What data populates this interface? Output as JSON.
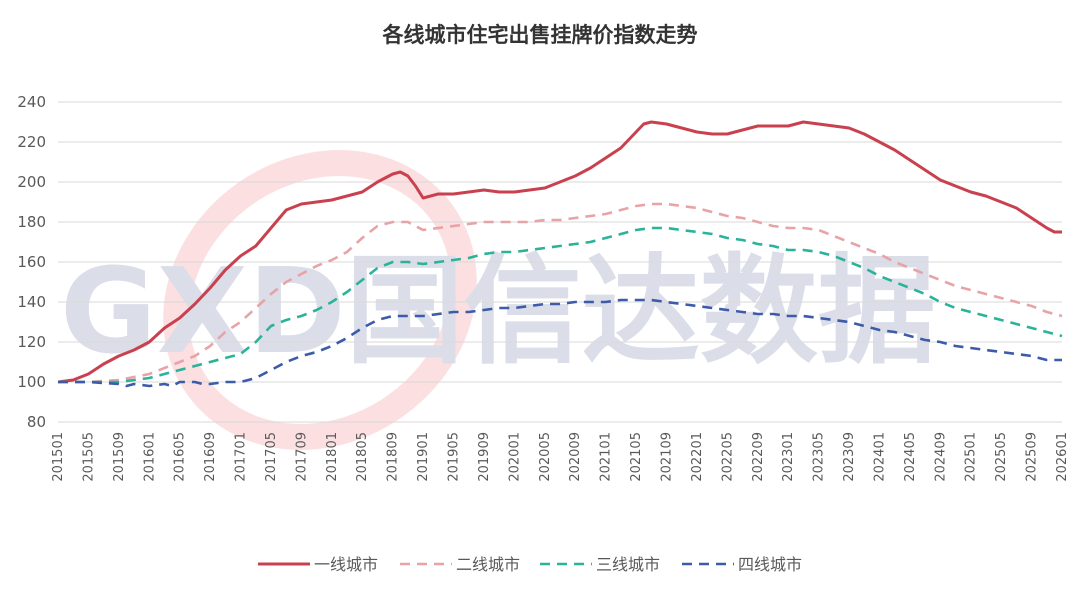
{
  "chart_data": {
    "type": "line",
    "title": "各线城市住宅出售挂牌价指数走势",
    "watermark": "GXD国信达数据",
    "ylim": [
      80,
      240
    ],
    "yticks": [
      80,
      100,
      120,
      140,
      160,
      180,
      200,
      220,
      240
    ],
    "xlim": [
      0,
      132
    ],
    "xticks": [
      {
        "i": 0,
        "label": "201501"
      },
      {
        "i": 4,
        "label": "201505"
      },
      {
        "i": 8,
        "label": "201509"
      },
      {
        "i": 12,
        "label": "201601"
      },
      {
        "i": 16,
        "label": "201605"
      },
      {
        "i": 20,
        "label": "201609"
      },
      {
        "i": 24,
        "label": "201701"
      },
      {
        "i": 28,
        "label": "201705"
      },
      {
        "i": 32,
        "label": "201709"
      },
      {
        "i": 36,
        "label": "201801"
      },
      {
        "i": 40,
        "label": "201805"
      },
      {
        "i": 44,
        "label": "201809"
      },
      {
        "i": 48,
        "label": "201901"
      },
      {
        "i": 52,
        "label": "201905"
      },
      {
        "i": 56,
        "label": "201909"
      },
      {
        "i": 60,
        "label": "202001"
      },
      {
        "i": 64,
        "label": "202005"
      },
      {
        "i": 68,
        "label": "202009"
      },
      {
        "i": 72,
        "label": "202101"
      },
      {
        "i": 76,
        "label": "202105"
      },
      {
        "i": 80,
        "label": "202109"
      },
      {
        "i": 84,
        "label": "202201"
      },
      {
        "i": 88,
        "label": "202205"
      },
      {
        "i": 92,
        "label": "202209"
      },
      {
        "i": 96,
        "label": "202301"
      },
      {
        "i": 100,
        "label": "202305"
      },
      {
        "i": 104,
        "label": "202309"
      },
      {
        "i": 108,
        "label": "202401"
      },
      {
        "i": 112,
        "label": "202405"
      },
      {
        "i": 116,
        "label": "202409"
      },
      {
        "i": 120,
        "label": "202501"
      },
      {
        "i": 124,
        "label": "202505"
      },
      {
        "i": 128,
        "label": "202509"
      },
      {
        "i": 132,
        "label": "202601"
      }
    ],
    "grid": true,
    "legend_position": "bottom",
    "series": [
      {
        "name": "一线城市",
        "color": "#c9414f",
        "dash": "solid",
        "points": [
          [
            0,
            100
          ],
          [
            2,
            101
          ],
          [
            4,
            104
          ],
          [
            6,
            109
          ],
          [
            8,
            113
          ],
          [
            10,
            116
          ],
          [
            12,
            120
          ],
          [
            14,
            127
          ],
          [
            16,
            132
          ],
          [
            18,
            139
          ],
          [
            20,
            147
          ],
          [
            22,
            156
          ],
          [
            24,
            163
          ],
          [
            26,
            168
          ],
          [
            28,
            177
          ],
          [
            30,
            186
          ],
          [
            32,
            189
          ],
          [
            34,
            190
          ],
          [
            36,
            191
          ],
          [
            38,
            193
          ],
          [
            40,
            195
          ],
          [
            42,
            200
          ],
          [
            44,
            204
          ],
          [
            45,
            205
          ],
          [
            46,
            203
          ],
          [
            47,
            198
          ],
          [
            48,
            192
          ],
          [
            50,
            194
          ],
          [
            52,
            194
          ],
          [
            54,
            195
          ],
          [
            56,
            196
          ],
          [
            58,
            195
          ],
          [
            60,
            195
          ],
          [
            62,
            196
          ],
          [
            64,
            197
          ],
          [
            66,
            200
          ],
          [
            68,
            203
          ],
          [
            70,
            207
          ],
          [
            72,
            212
          ],
          [
            74,
            217
          ],
          [
            76,
            225
          ],
          [
            77,
            229
          ],
          [
            78,
            230
          ],
          [
            80,
            229
          ],
          [
            82,
            227
          ],
          [
            84,
            225
          ],
          [
            86,
            224
          ],
          [
            88,
            224
          ],
          [
            90,
            226
          ],
          [
            92,
            228
          ],
          [
            94,
            228
          ],
          [
            96,
            228
          ],
          [
            98,
            230
          ],
          [
            100,
            229
          ],
          [
            102,
            228
          ],
          [
            104,
            227
          ],
          [
            106,
            224
          ],
          [
            108,
            220
          ],
          [
            110,
            216
          ],
          [
            112,
            211
          ],
          [
            114,
            206
          ],
          [
            116,
            201
          ],
          [
            118,
            198
          ],
          [
            120,
            195
          ],
          [
            122,
            193
          ],
          [
            124,
            190
          ],
          [
            126,
            187
          ],
          [
            128,
            182
          ],
          [
            130,
            177
          ],
          [
            131,
            175
          ],
          [
            132,
            175
          ]
        ]
      },
      {
        "name": "二线城市",
        "color": "#e8a3a6",
        "dash": "10,7",
        "points": [
          [
            0,
            100
          ],
          [
            4,
            100
          ],
          [
            8,
            101
          ],
          [
            12,
            104
          ],
          [
            16,
            110
          ],
          [
            18,
            113
          ],
          [
            20,
            118
          ],
          [
            22,
            125
          ],
          [
            24,
            130
          ],
          [
            26,
            137
          ],
          [
            28,
            144
          ],
          [
            30,
            150
          ],
          [
            32,
            154
          ],
          [
            34,
            158
          ],
          [
            36,
            161
          ],
          [
            38,
            165
          ],
          [
            40,
            172
          ],
          [
            42,
            178
          ],
          [
            44,
            180
          ],
          [
            46,
            180
          ],
          [
            48,
            176
          ],
          [
            50,
            177
          ],
          [
            52,
            178
          ],
          [
            54,
            179
          ],
          [
            56,
            180
          ],
          [
            58,
            180
          ],
          [
            60,
            180
          ],
          [
            62,
            180
          ],
          [
            64,
            181
          ],
          [
            66,
            181
          ],
          [
            68,
            182
          ],
          [
            70,
            183
          ],
          [
            72,
            184
          ],
          [
            74,
            186
          ],
          [
            76,
            188
          ],
          [
            78,
            189
          ],
          [
            80,
            189
          ],
          [
            82,
            188
          ],
          [
            84,
            187
          ],
          [
            86,
            185
          ],
          [
            88,
            183
          ],
          [
            90,
            182
          ],
          [
            92,
            180
          ],
          [
            94,
            178
          ],
          [
            96,
            177
          ],
          [
            98,
            177
          ],
          [
            100,
            176
          ],
          [
            102,
            173
          ],
          [
            104,
            170
          ],
          [
            106,
            167
          ],
          [
            108,
            164
          ],
          [
            110,
            160
          ],
          [
            112,
            157
          ],
          [
            114,
            154
          ],
          [
            116,
            151
          ],
          [
            118,
            148
          ],
          [
            120,
            146
          ],
          [
            122,
            144
          ],
          [
            124,
            142
          ],
          [
            126,
            140
          ],
          [
            128,
            138
          ],
          [
            130,
            135
          ],
          [
            132,
            133
          ]
        ]
      },
      {
        "name": "三线城市",
        "color": "#2bb39a",
        "dash": "10,7",
        "points": [
          [
            0,
            100
          ],
          [
            4,
            100
          ],
          [
            8,
            100
          ],
          [
            12,
            102
          ],
          [
            14,
            104
          ],
          [
            16,
            106
          ],
          [
            18,
            108
          ],
          [
            20,
            110
          ],
          [
            22,
            112
          ],
          [
            24,
            114
          ],
          [
            26,
            120
          ],
          [
            28,
            128
          ],
          [
            30,
            131
          ],
          [
            32,
            133
          ],
          [
            34,
            136
          ],
          [
            36,
            140
          ],
          [
            38,
            145
          ],
          [
            40,
            151
          ],
          [
            42,
            157
          ],
          [
            44,
            160
          ],
          [
            46,
            160
          ],
          [
            48,
            159
          ],
          [
            50,
            160
          ],
          [
            52,
            161
          ],
          [
            54,
            162
          ],
          [
            56,
            164
          ],
          [
            58,
            165
          ],
          [
            60,
            165
          ],
          [
            62,
            166
          ],
          [
            64,
            167
          ],
          [
            66,
            168
          ],
          [
            68,
            169
          ],
          [
            70,
            170
          ],
          [
            72,
            172
          ],
          [
            74,
            174
          ],
          [
            76,
            176
          ],
          [
            78,
            177
          ],
          [
            80,
            177
          ],
          [
            82,
            176
          ],
          [
            84,
            175
          ],
          [
            86,
            174
          ],
          [
            88,
            172
          ],
          [
            90,
            171
          ],
          [
            92,
            169
          ],
          [
            94,
            168
          ],
          [
            96,
            166
          ],
          [
            98,
            166
          ],
          [
            100,
            165
          ],
          [
            102,
            163
          ],
          [
            104,
            160
          ],
          [
            106,
            157
          ],
          [
            108,
            153
          ],
          [
            110,
            150
          ],
          [
            112,
            147
          ],
          [
            114,
            144
          ],
          [
            116,
            140
          ],
          [
            118,
            137
          ],
          [
            120,
            135
          ],
          [
            122,
            133
          ],
          [
            124,
            131
          ],
          [
            126,
            129
          ],
          [
            128,
            127
          ],
          [
            130,
            125
          ],
          [
            132,
            123
          ]
        ]
      },
      {
        "name": "四线城市",
        "color": "#3c5ba8",
        "dash": "10,7",
        "points": [
          [
            0,
            100
          ],
          [
            4,
            100
          ],
          [
            8,
            99
          ],
          [
            9,
            98
          ],
          [
            10,
            99
          ],
          [
            12,
            98
          ],
          [
            14,
            99
          ],
          [
            15,
            98
          ],
          [
            16,
            100
          ],
          [
            18,
            100
          ],
          [
            19,
            99
          ],
          [
            20,
            99
          ],
          [
            22,
            100
          ],
          [
            24,
            100
          ],
          [
            26,
            102
          ],
          [
            28,
            106
          ],
          [
            30,
            110
          ],
          [
            32,
            113
          ],
          [
            34,
            115
          ],
          [
            36,
            118
          ],
          [
            38,
            122
          ],
          [
            40,
            127
          ],
          [
            42,
            131
          ],
          [
            44,
            133
          ],
          [
            46,
            133
          ],
          [
            48,
            133
          ],
          [
            50,
            134
          ],
          [
            52,
            135
          ],
          [
            54,
            135
          ],
          [
            56,
            136
          ],
          [
            58,
            137
          ],
          [
            60,
            137
          ],
          [
            62,
            138
          ],
          [
            64,
            139
          ],
          [
            66,
            139
          ],
          [
            68,
            140
          ],
          [
            70,
            140
          ],
          [
            72,
            140
          ],
          [
            74,
            141
          ],
          [
            76,
            141
          ],
          [
            78,
            141
          ],
          [
            80,
            140
          ],
          [
            82,
            139
          ],
          [
            84,
            138
          ],
          [
            86,
            137
          ],
          [
            88,
            136
          ],
          [
            90,
            135
          ],
          [
            92,
            134
          ],
          [
            94,
            134
          ],
          [
            96,
            133
          ],
          [
            98,
            133
          ],
          [
            100,
            132
          ],
          [
            102,
            131
          ],
          [
            104,
            130
          ],
          [
            106,
            128
          ],
          [
            108,
            126
          ],
          [
            110,
            125
          ],
          [
            112,
            123
          ],
          [
            114,
            121
          ],
          [
            116,
            120
          ],
          [
            118,
            118
          ],
          [
            120,
            117
          ],
          [
            122,
            116
          ],
          [
            124,
            115
          ],
          [
            126,
            114
          ],
          [
            128,
            113
          ],
          [
            130,
            111
          ],
          [
            132,
            111
          ]
        ]
      }
    ]
  }
}
